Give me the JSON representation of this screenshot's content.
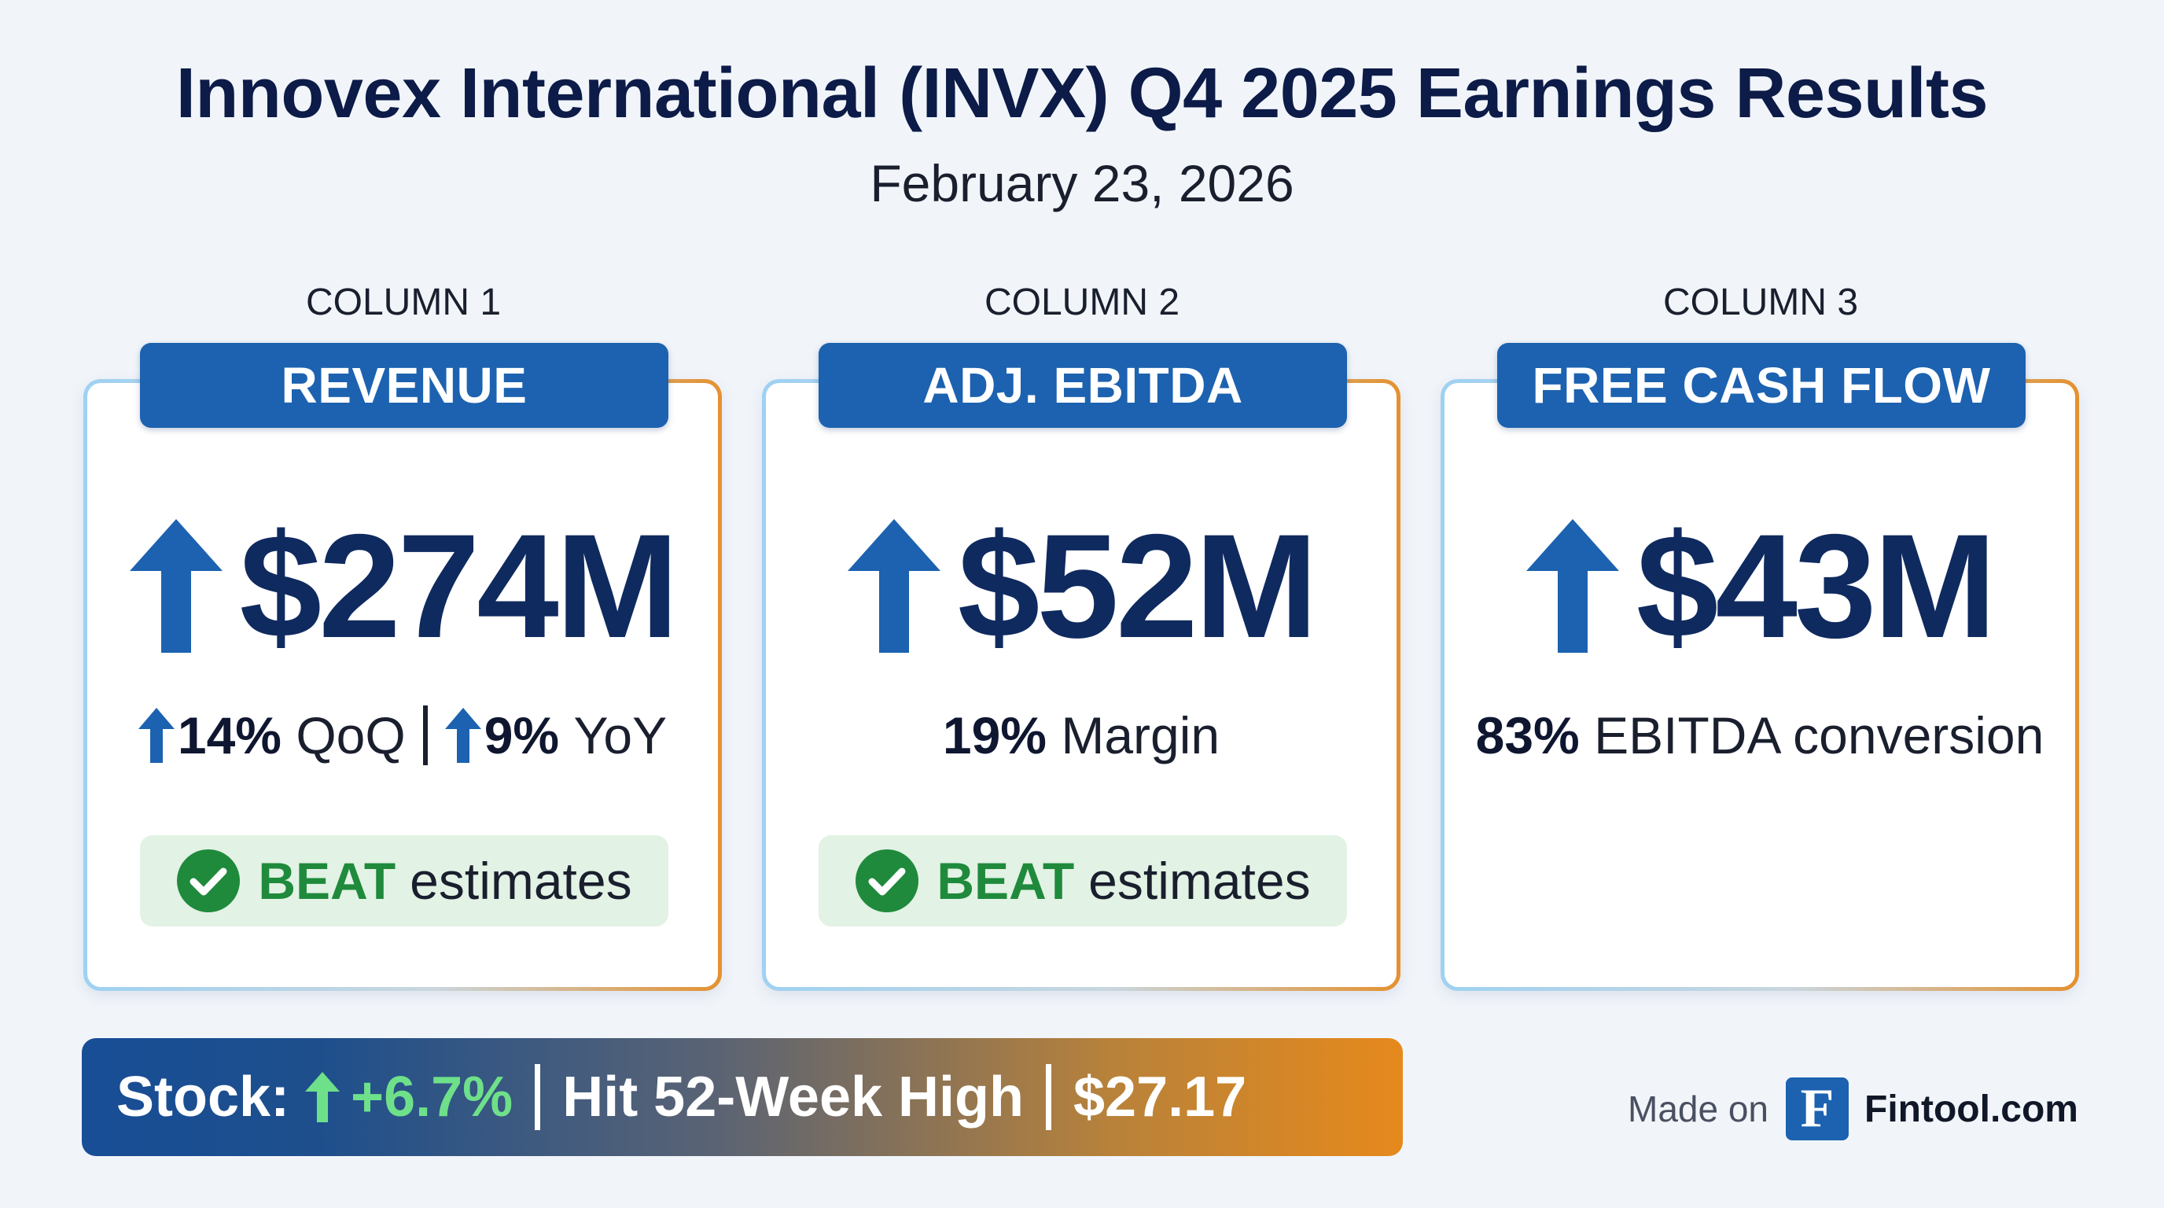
{
  "title": "Innovex International (INVX) Q4 2025 Earnings Results",
  "date": "February 23, 2026",
  "colors": {
    "accent_blue": "#1c62b0",
    "value_navy": "#0f2a5f",
    "beat_green": "#1f8a3c",
    "stock_green": "#6ee08a",
    "orange": "#e6891c"
  },
  "columns": [
    {
      "label": "COLUMN 1",
      "header": "REVENUE",
      "value": "$274M",
      "arrow_icon": "up-arrow-icon",
      "qoq_value": "14%",
      "qoq_label": "QoQ",
      "yoy_value": "9%",
      "yoy_label": "YoY",
      "beat_word": "BEAT",
      "beat_rest": "estimates"
    },
    {
      "label": "COLUMN 2",
      "header": "ADJ. EBITDA",
      "value": "$52M",
      "arrow_icon": "up-arrow-icon",
      "metric_value": "19%",
      "metric_label": "Margin",
      "beat_word": "BEAT",
      "beat_rest": "estimates"
    },
    {
      "label": "COLUMN 3",
      "header": "FREE CASH FLOW",
      "value": "$43M",
      "arrow_icon": "up-arrow-icon",
      "metric_value": "83%",
      "metric_label": "EBITDA conversion"
    }
  ],
  "stock": {
    "label": "Stock:",
    "change": "+6.7%",
    "high_text": "Hit 52-Week High",
    "price": "$27.17"
  },
  "footer": {
    "made_on": "Made on",
    "logo_letter": "F",
    "site": "Fintool.com"
  }
}
